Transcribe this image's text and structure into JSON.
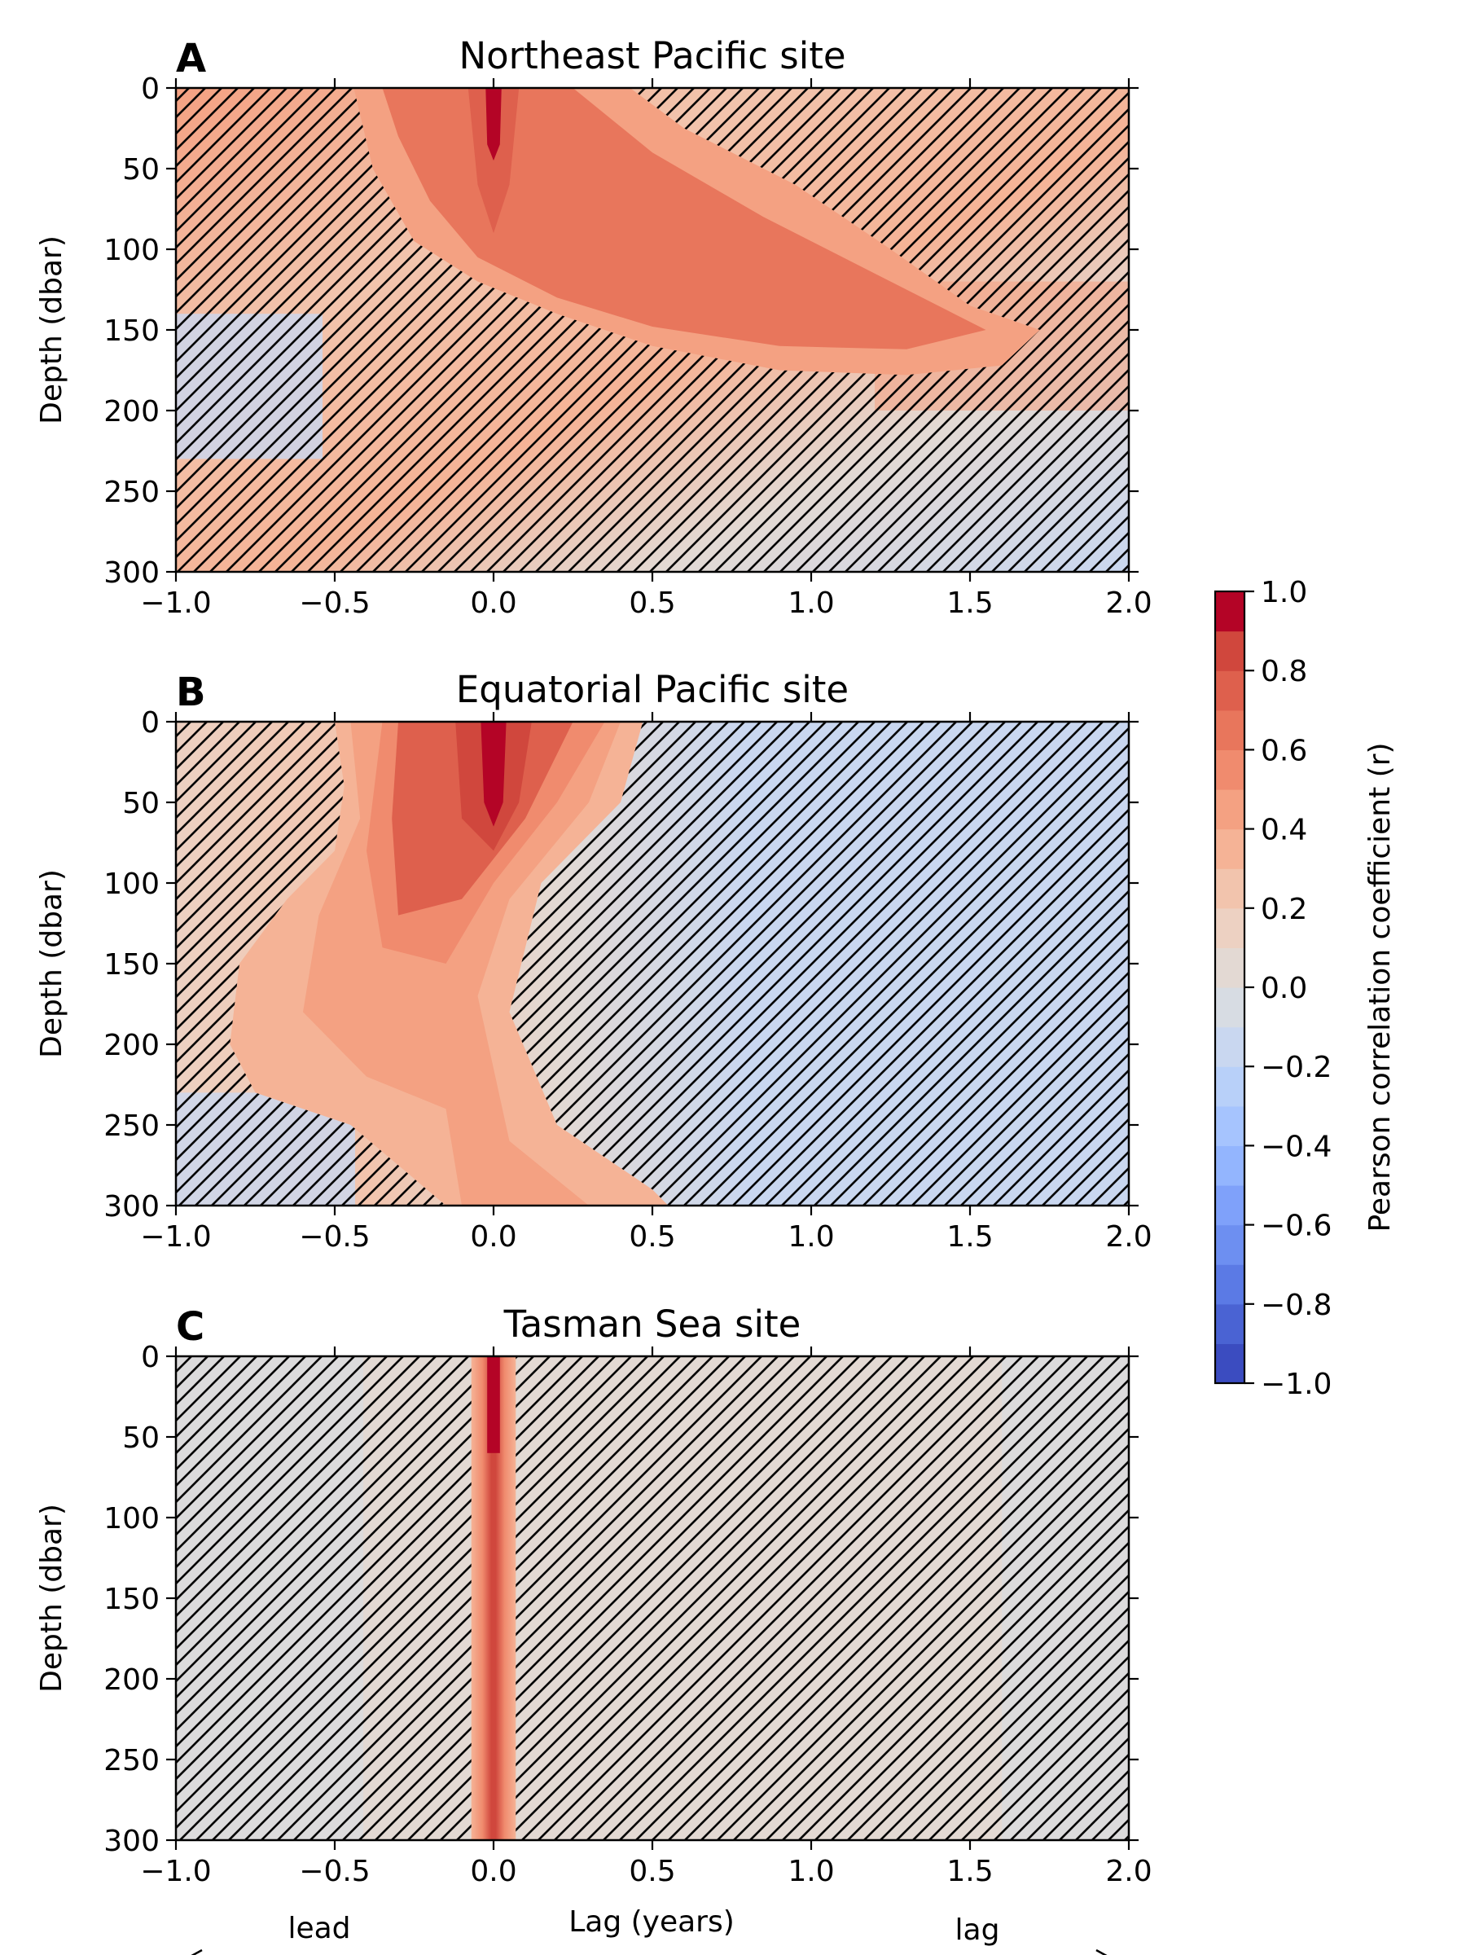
{
  "chart_data": {
    "type": "heatmap",
    "x_range": [
      -1.0,
      2.0
    ],
    "y_range": [
      0,
      300
    ],
    "y_inverted": true,
    "x_ticks": [
      -1.0,
      -0.5,
      0.0,
      0.5,
      1.0,
      1.5,
      2.0
    ],
    "x_tick_labels": [
      "−1.0",
      "−0.5",
      "0.0",
      "0.5",
      "1.0",
      "1.5",
      "2.0"
    ],
    "y_ticks": [
      0,
      50,
      100,
      150,
      200,
      250,
      300
    ],
    "y_tick_labels": [
      "0",
      "50",
      "100",
      "150",
      "200",
      "250",
      "300"
    ],
    "ylabel": "Depth (dbar)",
    "xlabel": "Lag (years)",
    "lead_label": "lead",
    "lag_label": "lag",
    "hatch": "non-significant regions hatched",
    "colormap": "coolwarm",
    "colorbar": {
      "label": "Pearson correlation coefficient (r)",
      "range": [
        -1.0,
        1.0
      ],
      "ticks": [
        1.0,
        0.8,
        0.6,
        0.4,
        0.2,
        0.0,
        -0.2,
        -0.4,
        -0.6,
        -0.8,
        -1.0
      ],
      "tick_labels": [
        "1.0",
        "0.8",
        "0.6",
        "0.4",
        "0.2",
        "0.0",
        "−0.2",
        "−0.4",
        "−0.6",
        "−0.8",
        "−1.0"
      ],
      "levels": 20,
      "colors": [
        "#3b4cc0",
        "#4a63d3",
        "#5b7ae5",
        "#6d8ff1",
        "#7fa1fa",
        "#93b5fe",
        "#a6c4fe",
        "#b8d0f9",
        "#c9d7f0",
        "#d7dce3",
        "#e3d9d3",
        "#edd1c2",
        "#f2c4ad",
        "#f5b396",
        "#f4a182",
        "#f08b6e",
        "#e8765c",
        "#de604d",
        "#d0473d",
        "#b40426"
      ]
    },
    "panels": [
      {
        "label": "A",
        "title": "Northeast Pacific site",
        "peak_r": 0.95,
        "peak_at": {
          "lag": 0.0,
          "depth": 15
        },
        "features": [
          {
            "description_value": "r 0.8–0.9 core",
            "lag": [
              -0.02,
              0.02
            ],
            "depth": [
              0,
              40
            ]
          },
          {
            "description_value": "r 0.6–0.7 band",
            "lag": [
              -0.35,
              1.7
            ],
            "depth": [
              0,
              175
            ]
          }
        ]
      },
      {
        "label": "B",
        "title": "Equatorial Pacific site",
        "peak_r": 0.95,
        "peak_at": {
          "lag": 0.0,
          "depth": 40
        },
        "features": [
          {
            "description_value": "r > 0.8 core",
            "lag": [
              -0.05,
              0.05
            ],
            "depth": [
              0,
              65
            ]
          },
          {
            "description_value": "significant r 0.3–0.7",
            "lag": [
              -0.85,
              0.5
            ],
            "depth": [
              0,
              300
            ]
          },
          {
            "description_value": "min r ≈ −0.25",
            "lag": [
              0.5,
              2.0
            ],
            "depth": [
              0,
              200
            ]
          }
        ]
      },
      {
        "label": "C",
        "title": "Tasman Sea site",
        "peak_r": 0.95,
        "peak_at": {
          "lag": 0.0,
          "depth": 30
        },
        "features": [
          {
            "description_value": "narrow significant band",
            "lag": [
              -0.07,
              0.07
            ],
            "depth": [
              0,
              300
            ]
          }
        ]
      }
    ]
  }
}
